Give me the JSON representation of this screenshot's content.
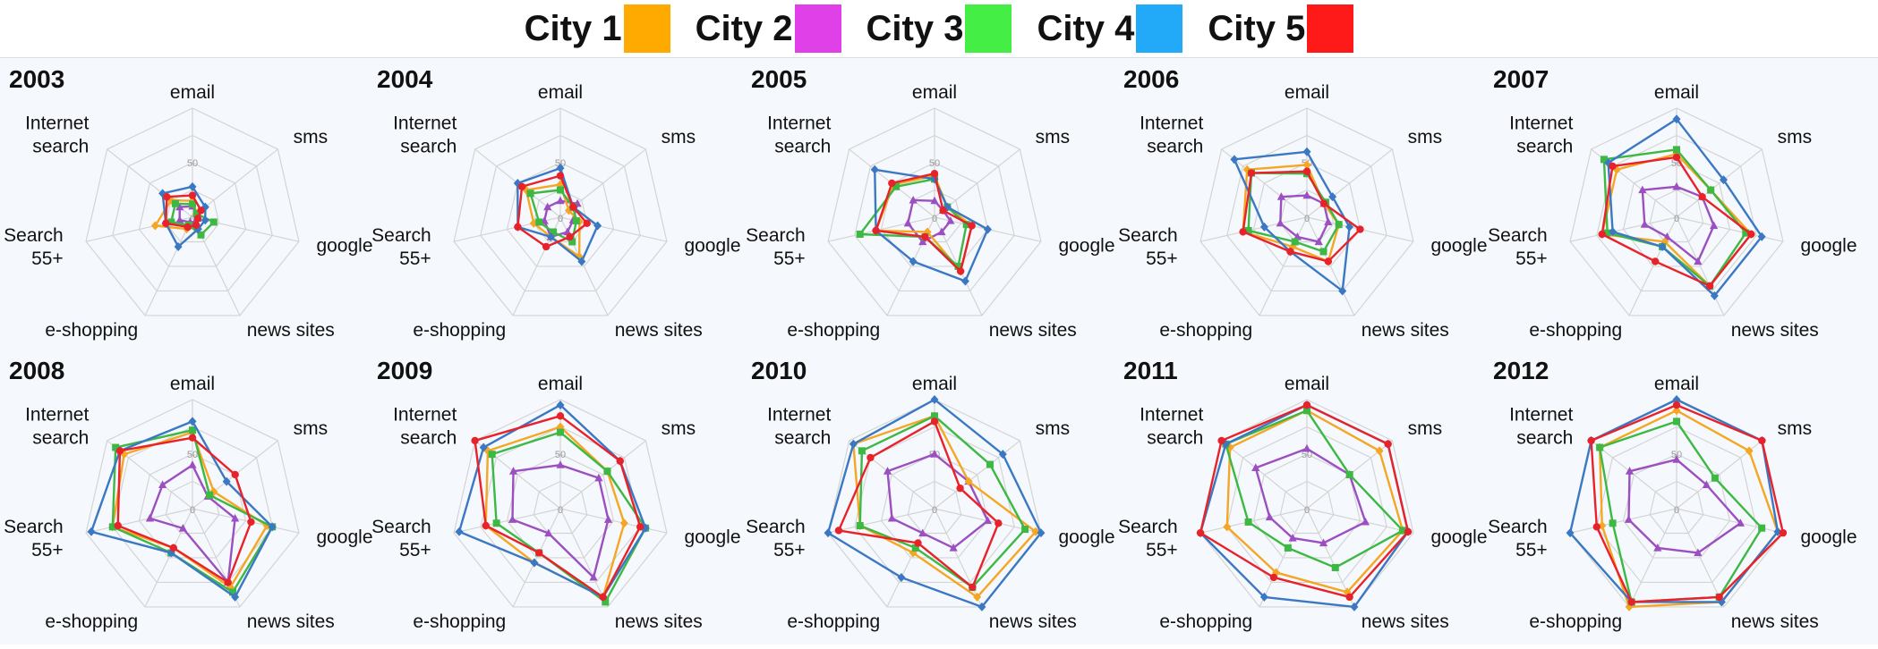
{
  "legend": {
    "items": [
      {
        "label": "City 1",
        "color": "#ffaa00"
      },
      {
        "label": "City 2",
        "color": "#e040e8"
      },
      {
        "label": "City 3",
        "color": "#44ee44"
      },
      {
        "label": "City 4",
        "color": "#22aaf8"
      },
      {
        "label": "City 5",
        "color": "#ff1a1a"
      }
    ]
  },
  "chart_data": {
    "type": "radar",
    "axes": [
      "email",
      "sms",
      "google",
      "news sites",
      "e-shopping",
      "Search 55+",
      "Internet search"
    ],
    "axis_label_lines": [
      [
        "email"
      ],
      [
        "sms"
      ],
      [
        "google"
      ],
      [
        "news sites"
      ],
      [
        "e-shopping"
      ],
      [
        "Search",
        "55+"
      ],
      [
        "Internet",
        "search"
      ]
    ],
    "rlim": [
      0,
      100
    ],
    "tick_labels": [
      "0",
      "50"
    ],
    "series_styles": [
      {
        "name": "City 1",
        "line": "#f5a623",
        "marker": "diamond"
      },
      {
        "name": "City 2",
        "line": "#9b4fc0",
        "marker": "triangle"
      },
      {
        "name": "City 3",
        "line": "#3db843",
        "marker": "square"
      },
      {
        "name": "City 4",
        "line": "#3b78c4",
        "marker": "diamond"
      },
      {
        "name": "City 5",
        "line": "#e8222a",
        "marker": "circle"
      }
    ],
    "panels": [
      {
        "year": "2003",
        "series": [
          {
            "name": "City 1",
            "values": [
              15,
              5,
              5,
              10,
              12,
              35,
              25
            ]
          },
          {
            "name": "City 2",
            "values": [
              10,
              5,
              5,
              5,
              5,
              12,
              15
            ]
          },
          {
            "name": "City 3",
            "values": [
              12,
              5,
              20,
              18,
              8,
              20,
              20
            ]
          },
          {
            "name": "City 4",
            "values": [
              28,
              15,
              12,
              12,
              30,
              25,
              35
            ]
          },
          {
            "name": "City 5",
            "values": [
              20,
              10,
              5,
              8,
              10,
              25,
              30
            ]
          }
        ]
      },
      {
        "year": "2004",
        "series": [
          {
            "name": "City 1",
            "values": [
              30,
              10,
              18,
              40,
              20,
              25,
              40
            ]
          },
          {
            "name": "City 2",
            "values": [
              15,
              20,
              12,
              15,
              20,
              15,
              15
            ]
          },
          {
            "name": "City 3",
            "values": [
              25,
              15,
              15,
              25,
              15,
              20,
              35
            ]
          },
          {
            "name": "City 4",
            "values": [
              45,
              15,
              35,
              45,
              20,
              40,
              50
            ]
          },
          {
            "name": "City 5",
            "values": [
              38,
              15,
              25,
              20,
              30,
              40,
              45
            ]
          }
        ]
      },
      {
        "year": "2005",
        "series": [
          {
            "name": "City 1",
            "values": [
              38,
              15,
              35,
              55,
              15,
              55,
              48
            ]
          },
          {
            "name": "City 2",
            "values": [
              15,
              10,
              15,
              15,
              25,
              25,
              25
            ]
          },
          {
            "name": "City 3",
            "values": [
              35,
              15,
              30,
              50,
              20,
              70,
              45
            ]
          },
          {
            "name": "City 4",
            "values": [
              35,
              15,
              50,
              65,
              45,
              55,
              70
            ]
          },
          {
            "name": "City 5",
            "values": [
              40,
              10,
              35,
              55,
              20,
              55,
              50
            ]
          }
        ]
      },
      {
        "year": "2006",
        "series": [
          {
            "name": "City 1",
            "values": [
              48,
              20,
              30,
              45,
              30,
              60,
              70
            ]
          },
          {
            "name": "City 2",
            "values": [
              20,
              20,
              20,
              25,
              20,
              25,
              30
            ]
          },
          {
            "name": "City 3",
            "values": [
              40,
              22,
              30,
              35,
              25,
              55,
              65
            ]
          },
          {
            "name": "City 4",
            "values": [
              60,
              30,
              40,
              75,
              35,
              40,
              85
            ]
          },
          {
            "name": "City 5",
            "values": [
              42,
              20,
              50,
              45,
              35,
              60,
              65
            ]
          }
        ]
      },
      {
        "year": "2007",
        "series": [
          {
            "name": "City 1",
            "values": [
              58,
              40,
              70,
              70,
              25,
              70,
              70
            ]
          },
          {
            "name": "City 2",
            "values": [
              28,
              30,
              35,
              45,
              20,
              30,
              40
            ]
          },
          {
            "name": "City 3",
            "values": [
              62,
              40,
              65,
              70,
              30,
              65,
              85
            ]
          },
          {
            "name": "City 4",
            "values": [
              90,
              55,
              80,
              80,
              30,
              60,
              80
            ]
          },
          {
            "name": "City 5",
            "values": [
              55,
              30,
              70,
              70,
              45,
              70,
              75
            ]
          }
        ]
      },
      {
        "year": "2008",
        "series": [
          {
            "name": "City 1",
            "values": [
              70,
              25,
              70,
              80,
              40,
              75,
              80
            ]
          },
          {
            "name": "City 2",
            "values": [
              40,
              18,
              40,
              75,
              20,
              40,
              35
            ]
          },
          {
            "name": "City 3",
            "values": [
              72,
              20,
              75,
              85,
              45,
              75,
              90
            ]
          },
          {
            "name": "City 4",
            "values": [
              80,
              40,
              75,
              90,
              45,
              95,
              85
            ]
          },
          {
            "name": "City 5",
            "values": [
              65,
              50,
              55,
              75,
              40,
              70,
              85
            ]
          }
        ]
      },
      {
        "year": "2009",
        "series": [
          {
            "name": "City 1",
            "values": [
              75,
              55,
              60,
              90,
              55,
              70,
              85
            ]
          },
          {
            "name": "City 2",
            "values": [
              40,
              45,
              45,
              70,
              25,
              45,
              55
            ]
          },
          {
            "name": "City 3",
            "values": [
              70,
              55,
              80,
              95,
              45,
              60,
              80
            ]
          },
          {
            "name": "City 4",
            "values": [
              95,
              70,
              80,
              90,
              55,
              95,
              90
            ]
          },
          {
            "name": "City 5",
            "values": [
              85,
              70,
              75,
              90,
              45,
              70,
              100
            ]
          }
        ]
      },
      {
        "year": "2010",
        "series": [
          {
            "name": "City 1",
            "values": [
              85,
              40,
              95,
              90,
              45,
              70,
              95
            ]
          },
          {
            "name": "City 2",
            "values": [
              50,
              40,
              50,
              40,
              25,
              40,
              55
            ]
          },
          {
            "name": "City 3",
            "values": [
              85,
              65,
              85,
              80,
              40,
              70,
              85
            ]
          },
          {
            "name": "City 4",
            "values": [
              100,
              80,
              100,
              100,
              70,
              100,
              95
            ]
          },
          {
            "name": "City 5",
            "values": [
              80,
              30,
              60,
              80,
              35,
              90,
              75
            ]
          }
        ]
      },
      {
        "year": "2011",
        "series": [
          {
            "name": "City 1",
            "values": [
              90,
              85,
              90,
              85,
              65,
              75,
              90
            ]
          },
          {
            "name": "City 2",
            "values": [
              55,
              50,
              55,
              35,
              30,
              35,
              60
            ]
          },
          {
            "name": "City 3",
            "values": [
              90,
              50,
              90,
              60,
              40,
              55,
              95
            ]
          },
          {
            "name": "City 4",
            "values": [
              95,
              95,
              95,
              100,
              90,
              100,
              95
            ]
          },
          {
            "name": "City 5",
            "values": [
              95,
              95,
              95,
              90,
              70,
              100,
              100
            ]
          }
        ]
      },
      {
        "year": "2012",
        "series": [
          {
            "name": "City 1",
            "values": [
              90,
              85,
              95,
              95,
              100,
              70,
              90
            ]
          },
          {
            "name": "City 2",
            "values": [
              45,
              35,
              60,
              45,
              40,
              45,
              55
            ]
          },
          {
            "name": "City 3",
            "values": [
              80,
              45,
              80,
              90,
              95,
              60,
              90
            ]
          },
          {
            "name": "City 4",
            "values": [
              100,
              100,
              95,
              95,
              95,
              100,
              100
            ]
          },
          {
            "name": "City 5",
            "values": [
              95,
              100,
              100,
              90,
              95,
              75,
              100
            ]
          }
        ]
      }
    ]
  }
}
